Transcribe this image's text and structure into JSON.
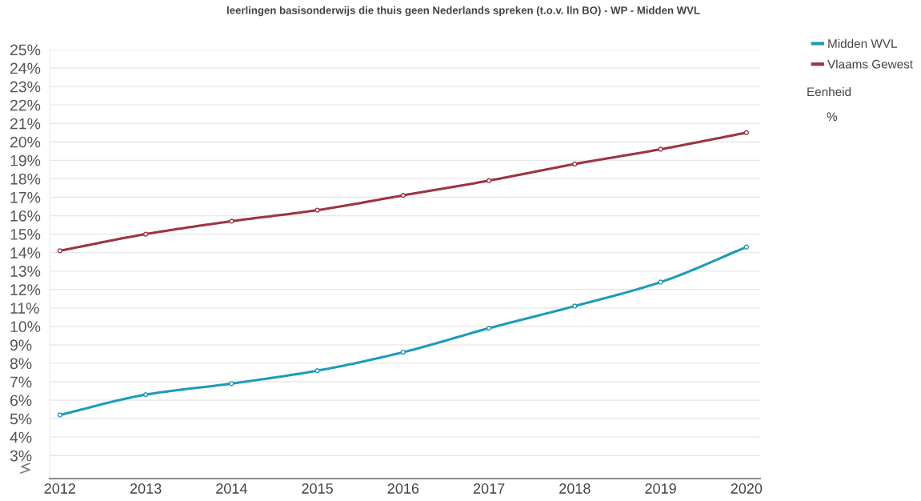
{
  "chart_data": {
    "type": "line",
    "title": "leerlingen basisonderwijs die thuis geen Nederlands spreken (t.o.v. lln BO) - WP - Midden WVL",
    "categories": [
      "2012",
      "2013",
      "2014",
      "2015",
      "2016",
      "2017",
      "2018",
      "2019",
      "2020"
    ],
    "series": [
      {
        "name": "Midden WVL",
        "color": "#1d9bb8",
        "values": [
          5.2,
          6.3,
          6.9,
          7.6,
          8.6,
          9.9,
          11.1,
          12.4,
          14.3
        ]
      },
      {
        "name": "Vlaams Gewest",
        "color": "#9e3341",
        "values": [
          14.1,
          15.0,
          15.7,
          16.3,
          17.1,
          17.9,
          18.8,
          19.6,
          20.5
        ]
      }
    ],
    "ylim": [
      1.75,
      25
    ],
    "yticks": [
      {
        "value": 3,
        "label": "3%"
      },
      {
        "value": 4,
        "label": "4%"
      },
      {
        "value": 5,
        "label": "5%"
      },
      {
        "value": 6,
        "label": "6%"
      },
      {
        "value": 7,
        "label": "7%"
      },
      {
        "value": 8,
        "label": "8%"
      },
      {
        "value": 9,
        "label": "9%"
      },
      {
        "value": 10,
        "label": "10%"
      },
      {
        "value": 11,
        "label": "11%"
      },
      {
        "value": 12,
        "label": "12%"
      },
      {
        "value": 13,
        "label": "13%"
      },
      {
        "value": 14,
        "label": "14%"
      },
      {
        "value": 15,
        "label": "15%"
      },
      {
        "value": 16,
        "label": "16%"
      },
      {
        "value": 17,
        "label": "17%"
      },
      {
        "value": 18,
        "label": "18%"
      },
      {
        "value": 19,
        "label": "19%"
      },
      {
        "value": 20,
        "label": "20%"
      },
      {
        "value": 21,
        "label": "21%"
      },
      {
        "value": 22,
        "label": "22%"
      },
      {
        "value": 23,
        "label": "23%"
      },
      {
        "value": 24,
        "label": "24%"
      },
      {
        "value": 25,
        "label": "25%"
      }
    ],
    "grid": "y",
    "legend": "top right",
    "marker": "circle",
    "annotations": [
      "Eenheid",
      "%"
    ]
  }
}
